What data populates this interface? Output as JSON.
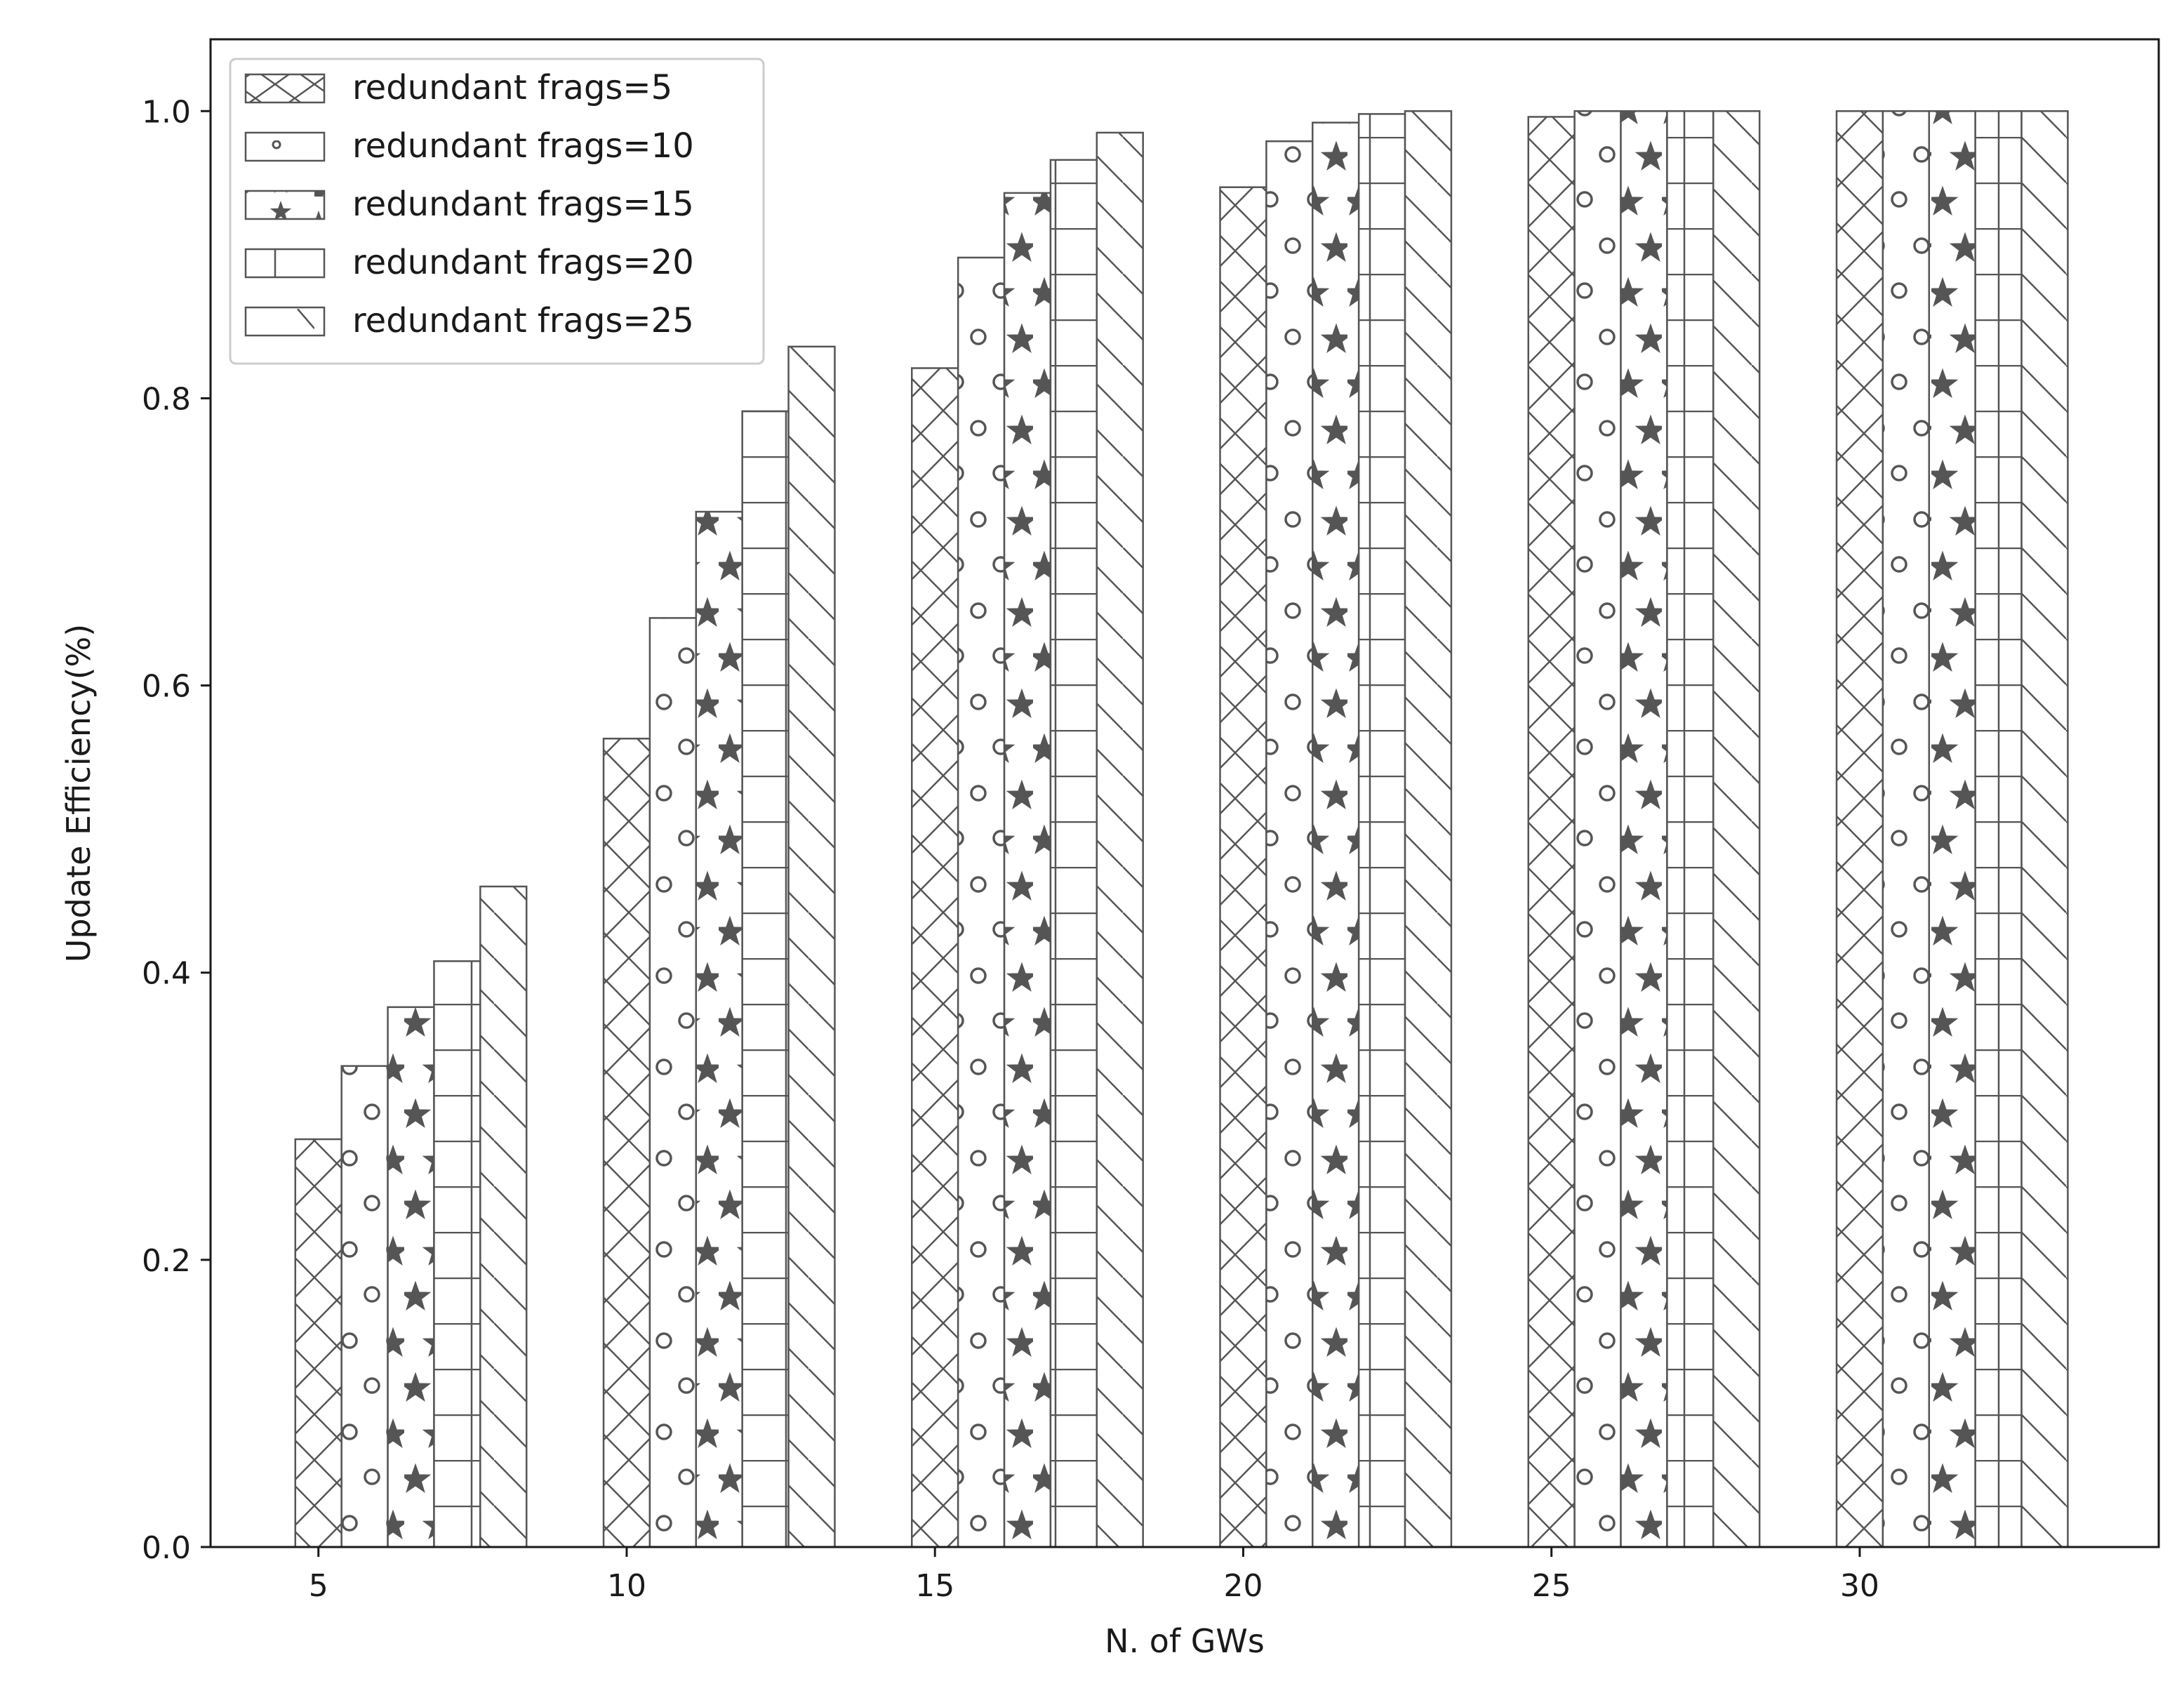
{
  "chart_data": {
    "type": "bar",
    "title": "",
    "xlabel": "N. of GWs",
    "ylabel": "Update Efficiency(%)",
    "categories": [
      "5",
      "10",
      "15",
      "20",
      "25",
      "30"
    ],
    "x": [
      5,
      10,
      15,
      20,
      25,
      30
    ],
    "xlim": [
      3.25,
      34.85
    ],
    "ylim": [
      0,
      1.05
    ],
    "xticks": [
      5,
      10,
      15,
      20,
      25,
      30
    ],
    "yticks": [
      "0.0",
      "0.2",
      "0.4",
      "0.6",
      "0.8",
      "1.0"
    ],
    "grid": false,
    "legend_position": "top-left",
    "bar_color": "#ffffff",
    "edge_color": "#555555",
    "series": [
      {
        "name": "redundant frags=5",
        "hatch": "diagonal-cross",
        "values": [
          0.284,
          0.563,
          0.821,
          0.947,
          0.996,
          1.0
        ]
      },
      {
        "name": "redundant frags=10",
        "hatch": "small-circles",
        "values": [
          0.335,
          0.647,
          0.898,
          0.979,
          1.0,
          1.0
        ]
      },
      {
        "name": "redundant frags=15",
        "hatch": "stars",
        "values": [
          0.376,
          0.721,
          0.943,
          0.992,
          1.0,
          1.0
        ]
      },
      {
        "name": "redundant frags=20",
        "hatch": "grid",
        "values": [
          0.408,
          0.791,
          0.966,
          0.998,
          1.0,
          1.0
        ]
      },
      {
        "name": "redundant frags=25",
        "hatch": "back-diagonal",
        "values": [
          0.46,
          0.836,
          0.985,
          1.0,
          1.0,
          1.0
        ]
      }
    ]
  }
}
